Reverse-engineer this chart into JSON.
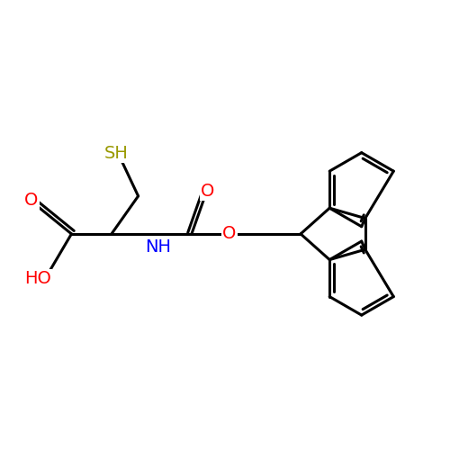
{
  "background_color": "#ffffff",
  "bond_color": "#000000",
  "bond_width": 2.2,
  "atom_colors": {
    "O": "#ff0000",
    "N": "#0000ff",
    "S": "#999900",
    "C": "#000000"
  },
  "font_size": 13,
  "fig_size": [
    5.0,
    5.0
  ],
  "dpi": 100,
  "xlim": [
    0,
    10
  ],
  "ylim": [
    0,
    10
  ]
}
